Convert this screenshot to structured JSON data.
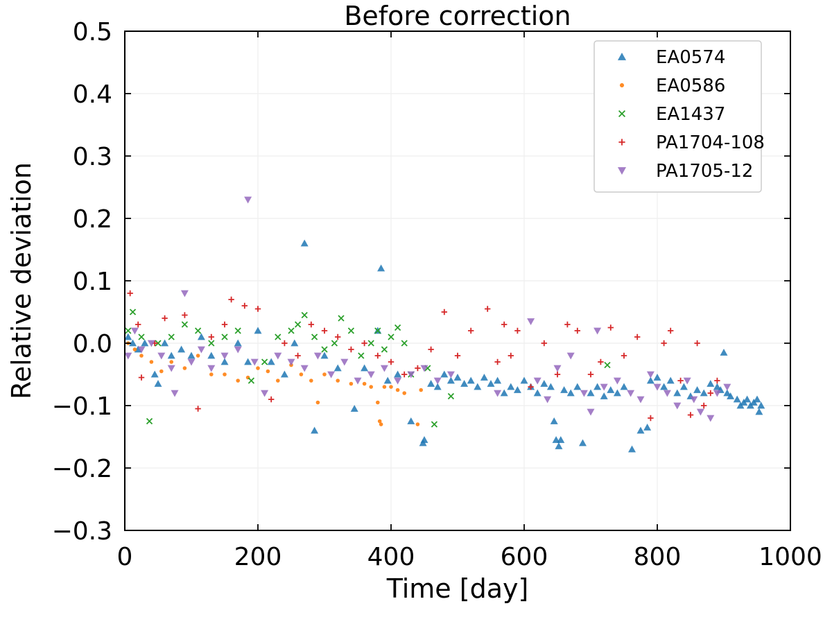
{
  "chart_data": {
    "type": "scatter",
    "title": "Before correction",
    "xlabel": "Time [day]",
    "ylabel": "Relative deviation",
    "xlim": [
      0,
      1000
    ],
    "ylim": [
      -0.3,
      0.5
    ],
    "xticks": [
      0,
      200,
      400,
      600,
      800,
      1000
    ],
    "yticks": [
      -0.3,
      -0.2,
      -0.1,
      0.0,
      0.1,
      0.2,
      0.3,
      0.4,
      0.5
    ],
    "xtick_labels": [
      "0",
      "200",
      "400",
      "600",
      "800",
      "1000"
    ],
    "ytick_labels": [
      "−0.3",
      "−0.2",
      "−0.1",
      "0.0",
      "0.1",
      "0.2",
      "0.3",
      "0.4",
      "0.5"
    ],
    "grid": true,
    "legend_position": "top-right",
    "series": [
      {
        "name": "EA0574",
        "marker": "triangle-up",
        "color": "#1f77b4",
        "points": [
          [
            5,
            0.01
          ],
          [
            12,
            0.0
          ],
          [
            20,
            -0.01
          ],
          [
            30,
            0.0
          ],
          [
            45,
            -0.05
          ],
          [
            50,
            -0.065
          ],
          [
            60,
            0.0
          ],
          [
            70,
            -0.02
          ],
          [
            85,
            -0.01
          ],
          [
            100,
            -0.02
          ],
          [
            115,
            0.01
          ],
          [
            130,
            -0.02
          ],
          [
            150,
            -0.03
          ],
          [
            170,
            0.0
          ],
          [
            185,
            -0.03
          ],
          [
            200,
            0.02
          ],
          [
            220,
            -0.03
          ],
          [
            240,
            -0.05
          ],
          [
            255,
            0.0
          ],
          [
            270,
            0.16
          ],
          [
            285,
            -0.14
          ],
          [
            300,
            -0.02
          ],
          [
            320,
            -0.04
          ],
          [
            345,
            -0.105
          ],
          [
            360,
            -0.04
          ],
          [
            380,
            0.02
          ],
          [
            385,
            0.12
          ],
          [
            395,
            -0.06
          ],
          [
            410,
            -0.05
          ],
          [
            430,
            -0.125
          ],
          [
            448,
            -0.16
          ],
          [
            450,
            -0.155
          ],
          [
            460,
            -0.065
          ],
          [
            470,
            -0.07
          ],
          [
            480,
            -0.05
          ],
          [
            490,
            -0.06
          ],
          [
            500,
            -0.055
          ],
          [
            510,
            -0.065
          ],
          [
            520,
            -0.06
          ],
          [
            530,
            -0.07
          ],
          [
            540,
            -0.055
          ],
          [
            550,
            -0.065
          ],
          [
            560,
            -0.06
          ],
          [
            570,
            -0.08
          ],
          [
            580,
            -0.07
          ],
          [
            590,
            -0.075
          ],
          [
            600,
            -0.06
          ],
          [
            610,
            -0.07
          ],
          [
            620,
            -0.08
          ],
          [
            630,
            -0.065
          ],
          [
            640,
            -0.07
          ],
          [
            645,
            -0.125
          ],
          [
            648,
            -0.155
          ],
          [
            652,
            -0.165
          ],
          [
            655,
            -0.155
          ],
          [
            660,
            -0.075
          ],
          [
            670,
            -0.08
          ],
          [
            680,
            -0.07
          ],
          [
            688,
            -0.16
          ],
          [
            700,
            -0.08
          ],
          [
            710,
            -0.07
          ],
          [
            720,
            -0.085
          ],
          [
            730,
            -0.075
          ],
          [
            740,
            -0.08
          ],
          [
            750,
            -0.07
          ],
          [
            762,
            -0.17
          ],
          [
            775,
            -0.14
          ],
          [
            785,
            -0.135
          ],
          [
            790,
            -0.06
          ],
          [
            800,
            -0.055
          ],
          [
            810,
            -0.07
          ],
          [
            820,
            -0.06
          ],
          [
            830,
            -0.08
          ],
          [
            840,
            -0.07
          ],
          [
            850,
            -0.085
          ],
          [
            860,
            -0.075
          ],
          [
            870,
            -0.08
          ],
          [
            880,
            -0.065
          ],
          [
            890,
            -0.07
          ],
          [
            895,
            -0.075
          ],
          [
            900,
            -0.015
          ],
          [
            905,
            -0.08
          ],
          [
            910,
            -0.085
          ],
          [
            920,
            -0.09
          ],
          [
            925,
            -0.1
          ],
          [
            930,
            -0.095
          ],
          [
            935,
            -0.09
          ],
          [
            940,
            -0.1
          ],
          [
            945,
            -0.095
          ],
          [
            950,
            -0.09
          ],
          [
            953,
            -0.11
          ],
          [
            956,
            -0.1
          ]
        ]
      },
      {
        "name": "EA0586",
        "marker": "circle",
        "color": "#ff7f0e",
        "points": [
          [
            5,
            0.0
          ],
          [
            15,
            -0.01
          ],
          [
            25,
            -0.02
          ],
          [
            40,
            -0.03
          ],
          [
            55,
            -0.045
          ],
          [
            70,
            -0.03
          ],
          [
            90,
            -0.04
          ],
          [
            110,
            -0.02
          ],
          [
            130,
            -0.05
          ],
          [
            150,
            -0.05
          ],
          [
            170,
            -0.06
          ],
          [
            185,
            -0.055
          ],
          [
            200,
            -0.04
          ],
          [
            215,
            -0.045
          ],
          [
            230,
            -0.06
          ],
          [
            250,
            -0.035
          ],
          [
            265,
            -0.05
          ],
          [
            280,
            -0.06
          ],
          [
            290,
            -0.095
          ],
          [
            300,
            -0.05
          ],
          [
            320,
            -0.06
          ],
          [
            340,
            -0.065
          ],
          [
            360,
            -0.065
          ],
          [
            370,
            -0.07
          ],
          [
            380,
            -0.095
          ],
          [
            383,
            -0.125
          ],
          [
            385,
            -0.13
          ],
          [
            390,
            -0.07
          ],
          [
            400,
            -0.07
          ],
          [
            410,
            -0.075
          ],
          [
            420,
            -0.08
          ],
          [
            440,
            -0.13
          ],
          [
            445,
            -0.075
          ]
        ]
      },
      {
        "name": "EA1437",
        "marker": "x",
        "color": "#2ca02c",
        "points": [
          [
            5,
            0.02
          ],
          [
            12,
            0.05
          ],
          [
            25,
            0.01
          ],
          [
            37,
            -0.125
          ],
          [
            50,
            0.0
          ],
          [
            70,
            0.01
          ],
          [
            90,
            0.03
          ],
          [
            110,
            0.02
          ],
          [
            130,
            0.0
          ],
          [
            150,
            0.01
          ],
          [
            170,
            0.02
          ],
          [
            190,
            -0.06
          ],
          [
            210,
            -0.03
          ],
          [
            230,
            0.01
          ],
          [
            250,
            0.02
          ],
          [
            260,
            0.03
          ],
          [
            270,
            0.045
          ],
          [
            285,
            0.01
          ],
          [
            300,
            -0.01
          ],
          [
            315,
            0.0
          ],
          [
            325,
            0.04
          ],
          [
            340,
            0.02
          ],
          [
            355,
            -0.02
          ],
          [
            370,
            0.0
          ],
          [
            380,
            0.02
          ],
          [
            390,
            -0.01
          ],
          [
            400,
            0.01
          ],
          [
            410,
            0.025
          ],
          [
            420,
            0.0
          ],
          [
            430,
            -0.05
          ],
          [
            455,
            -0.04
          ],
          [
            465,
            -0.13
          ],
          [
            490,
            -0.085
          ],
          [
            725,
            -0.035
          ]
        ]
      },
      {
        "name": "PA1704-108",
        "marker": "plus",
        "color": "#d62728",
        "points": [
          [
            8,
            0.08
          ],
          [
            20,
            0.03
          ],
          [
            25,
            -0.055
          ],
          [
            45,
            0.0
          ],
          [
            60,
            0.04
          ],
          [
            90,
            0.045
          ],
          [
            110,
            -0.105
          ],
          [
            130,
            0.01
          ],
          [
            150,
            0.03
          ],
          [
            160,
            0.07
          ],
          [
            180,
            0.06
          ],
          [
            200,
            0.055
          ],
          [
            220,
            -0.09
          ],
          [
            240,
            0.0
          ],
          [
            260,
            -0.02
          ],
          [
            280,
            0.03
          ],
          [
            300,
            0.02
          ],
          [
            320,
            0.01
          ],
          [
            340,
            -0.01
          ],
          [
            360,
            0.0
          ],
          [
            380,
            -0.02
          ],
          [
            400,
            -0.03
          ],
          [
            420,
            -0.05
          ],
          [
            440,
            -0.04
          ],
          [
            460,
            -0.01
          ],
          [
            480,
            0.05
          ],
          [
            500,
            -0.02
          ],
          [
            520,
            0.02
          ],
          [
            545,
            0.055
          ],
          [
            560,
            -0.03
          ],
          [
            570,
            0.03
          ],
          [
            580,
            -0.02
          ],
          [
            590,
            0.02
          ],
          [
            610,
            -0.07
          ],
          [
            630,
            0.0
          ],
          [
            650,
            -0.05
          ],
          [
            665,
            0.03
          ],
          [
            680,
            0.02
          ],
          [
            700,
            -0.05
          ],
          [
            715,
            -0.03
          ],
          [
            730,
            0.025
          ],
          [
            750,
            -0.02
          ],
          [
            770,
            0.01
          ],
          [
            790,
            -0.12
          ],
          [
            810,
            0.0
          ],
          [
            820,
            0.02
          ],
          [
            835,
            -0.06
          ],
          [
            850,
            -0.115
          ],
          [
            860,
            0.0
          ],
          [
            870,
            -0.1
          ],
          [
            880,
            -0.08
          ],
          [
            890,
            -0.06
          ]
        ]
      },
      {
        "name": "PA1705-12",
        "marker": "triangle-down",
        "color": "#9467bd",
        "points": [
          [
            5,
            -0.02
          ],
          [
            15,
            0.02
          ],
          [
            25,
            -0.01
          ],
          [
            40,
            0.0
          ],
          [
            55,
            -0.02
          ],
          [
            70,
            -0.04
          ],
          [
            75,
            -0.08
          ],
          [
            90,
            0.08
          ],
          [
            100,
            -0.03
          ],
          [
            115,
            -0.01
          ],
          [
            130,
            -0.04
          ],
          [
            150,
            -0.02
          ],
          [
            170,
            -0.01
          ],
          [
            185,
            0.23
          ],
          [
            195,
            -0.03
          ],
          [
            210,
            -0.08
          ],
          [
            230,
            -0.02
          ],
          [
            250,
            -0.03
          ],
          [
            270,
            -0.04
          ],
          [
            290,
            -0.02
          ],
          [
            310,
            -0.05
          ],
          [
            330,
            -0.03
          ],
          [
            350,
            -0.06
          ],
          [
            370,
            -0.05
          ],
          [
            390,
            -0.04
          ],
          [
            410,
            -0.06
          ],
          [
            430,
            -0.05
          ],
          [
            450,
            -0.04
          ],
          [
            470,
            -0.06
          ],
          [
            490,
            -0.05
          ],
          [
            560,
            -0.08
          ],
          [
            610,
            0.035
          ],
          [
            620,
            -0.06
          ],
          [
            635,
            -0.09
          ],
          [
            650,
            -0.04
          ],
          [
            670,
            -0.02
          ],
          [
            690,
            -0.08
          ],
          [
            700,
            -0.11
          ],
          [
            710,
            0.02
          ],
          [
            720,
            -0.07
          ],
          [
            740,
            -0.06
          ],
          [
            760,
            -0.08
          ],
          [
            775,
            -0.09
          ],
          [
            790,
            -0.05
          ],
          [
            800,
            -0.07
          ],
          [
            815,
            -0.08
          ],
          [
            830,
            -0.1
          ],
          [
            845,
            -0.06
          ],
          [
            855,
            -0.09
          ],
          [
            865,
            -0.11
          ],
          [
            880,
            -0.12
          ],
          [
            890,
            -0.08
          ],
          [
            905,
            -0.07
          ]
        ]
      }
    ]
  }
}
